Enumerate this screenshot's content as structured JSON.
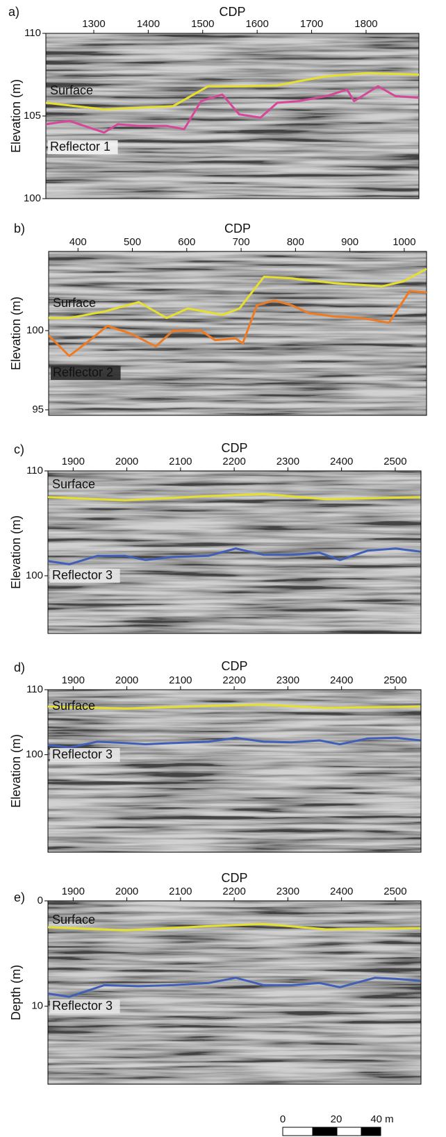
{
  "chart_data": [
    {
      "type": "line",
      "title": "a)",
      "x_label": "CDP",
      "y_label": "Elevation (m)",
      "xlim": [
        1212,
        1897
      ],
      "ylim": [
        100,
        110
      ],
      "xticks": [
        1300,
        1400,
        1500,
        1600,
        1700,
        1800
      ],
      "yticks": [
        100,
        105,
        110
      ],
      "series": [
        {
          "name": "Surface",
          "color": "#e6df2e",
          "x": [
            1212,
            1319,
            1446,
            1510,
            1574,
            1637,
            1676,
            1727,
            1803,
            1897
          ],
          "values": [
            105.8,
            105.4,
            105.6,
            106.8,
            106.8,
            106.85,
            107.1,
            107.4,
            107.6,
            107.5
          ]
        },
        {
          "name": "Reflector 1",
          "color": "#d6479a",
          "x": [
            1212,
            1255,
            1319,
            1344,
            1383,
            1434,
            1466,
            1497,
            1536,
            1567,
            1606,
            1637,
            1676,
            1727,
            1765,
            1778,
            1822,
            1854,
            1897
          ],
          "values": [
            104.5,
            104.7,
            104.0,
            104.5,
            104.4,
            104.4,
            104.2,
            105.9,
            106.3,
            105.1,
            104.9,
            105.8,
            105.9,
            106.2,
            106.6,
            105.9,
            106.8,
            106.2,
            106.1
          ]
        }
      ]
    },
    {
      "type": "line",
      "title": "b)",
      "x_label": "CDP",
      "y_label": "Elevation (m)",
      "xlim": [
        346,
        1041
      ],
      "ylim": [
        94.65,
        105
      ],
      "xticks": [
        400,
        500,
        600,
        700,
        800,
        900,
        1000
      ],
      "yticks": [
        95,
        100
      ],
      "series": [
        {
          "name": "Surface",
          "color": "#e6df2e",
          "x": [
            346,
            384,
            448,
            512,
            563,
            602,
            666,
            697,
            742,
            793,
            870,
            959,
            998,
            1041
          ],
          "values": [
            100.8,
            100.8,
            101.2,
            101.8,
            100.8,
            101.4,
            101.0,
            101.4,
            103.4,
            103.3,
            103.0,
            102.8,
            103.1,
            103.9
          ]
        },
        {
          "name": "Reflector 2",
          "color": "#ee7a22",
          "x": [
            346,
            384,
            422,
            454,
            498,
            543,
            575,
            626,
            652,
            690,
            703,
            729,
            761,
            793,
            825,
            870,
            921,
            972,
            1010,
            1041
          ],
          "values": [
            99.7,
            98.4,
            99.4,
            100.3,
            99.8,
            99.0,
            100.0,
            100.0,
            99.4,
            99.5,
            99.2,
            101.6,
            101.9,
            101.6,
            101.1,
            100.9,
            100.8,
            100.5,
            102.5,
            102.4
          ]
        }
      ]
    },
    {
      "type": "line",
      "title": "c)",
      "x_label": "CDP",
      "y_label": "Elevation (m)",
      "xlim": [
        1853,
        2548
      ],
      "ylim": [
        94.5,
        110
      ],
      "xticks": [
        1900,
        2000,
        2100,
        2200,
        2300,
        2400,
        2500
      ],
      "yticks": [
        100,
        110
      ],
      "series": [
        {
          "name": "Surface",
          "color": "#e6df2e",
          "x": [
            1853,
            1997,
            2152,
            2255,
            2371,
            2547
          ],
          "values": [
            107.5,
            107.2,
            107.6,
            107.8,
            107.3,
            107.5
          ]
        },
        {
          "name": "Reflector 3",
          "color": "#3f5fb8",
          "x": [
            1853,
            1893,
            1945,
            1997,
            2035,
            2087,
            2152,
            2203,
            2255,
            2307,
            2359,
            2397,
            2449,
            2501,
            2547
          ],
          "values": [
            101.4,
            101.1,
            101.9,
            101.9,
            101.5,
            101.8,
            101.9,
            102.6,
            102.0,
            102.0,
            102.2,
            101.5,
            102.4,
            102.6,
            102.3
          ]
        }
      ]
    },
    {
      "type": "line",
      "title": "d)",
      "x_label": "CDP",
      "y_label": "Elevation (m)",
      "xlim": [
        1853,
        2548
      ],
      "ylim": [
        85,
        110
      ],
      "xticks": [
        1900,
        2000,
        2100,
        2200,
        2300,
        2400,
        2500
      ],
      "yticks": [
        100,
        110
      ],
      "series": [
        {
          "name": "Surface",
          "color": "#e6df2e",
          "x": [
            1853,
            1997,
            2152,
            2255,
            2371,
            2547
          ],
          "values": [
            107.4,
            107.1,
            107.5,
            107.7,
            107.2,
            107.4
          ]
        },
        {
          "name": "Reflector 3",
          "color": "#3f5fb8",
          "x": [
            1853,
            1893,
            1945,
            1997,
            2035,
            2087,
            2152,
            2203,
            2255,
            2307,
            2359,
            2397,
            2449,
            2501,
            2547
          ],
          "values": [
            101.5,
            101.1,
            102.0,
            101.8,
            101.6,
            101.8,
            102.0,
            102.6,
            102.0,
            101.9,
            102.2,
            101.6,
            102.5,
            102.6,
            102.2
          ]
        }
      ]
    },
    {
      "type": "line",
      "title": "e)",
      "x_label": "CDP",
      "y_label": "Depth (m)",
      "xlim": [
        1853,
        2548
      ],
      "ylim": [
        17.4,
        0
      ],
      "xticks": [
        1900,
        2000,
        2100,
        2200,
        2300,
        2400,
        2500
      ],
      "yticks": [
        0,
        10
      ],
      "series": [
        {
          "name": "Surface",
          "color": "#e6df2e",
          "x": [
            1853,
            1997,
            2152,
            2255,
            2371,
            2547
          ],
          "values": [
            2.5,
            2.8,
            2.4,
            2.2,
            2.7,
            2.6
          ]
        },
        {
          "name": "Reflector 3",
          "color": "#3f5fb8",
          "x": [
            1853,
            1893,
            1958,
            2022,
            2087,
            2152,
            2203,
            2255,
            2307,
            2359,
            2397,
            2462,
            2501,
            2547
          ],
          "values": [
            8.8,
            9.1,
            8.0,
            8.1,
            8.0,
            7.8,
            7.3,
            8.0,
            8.0,
            7.8,
            8.2,
            7.3,
            7.4,
            7.6
          ]
        }
      ]
    }
  ],
  "scale_bar": {
    "labels": [
      "0",
      "20",
      "40 m"
    ]
  }
}
